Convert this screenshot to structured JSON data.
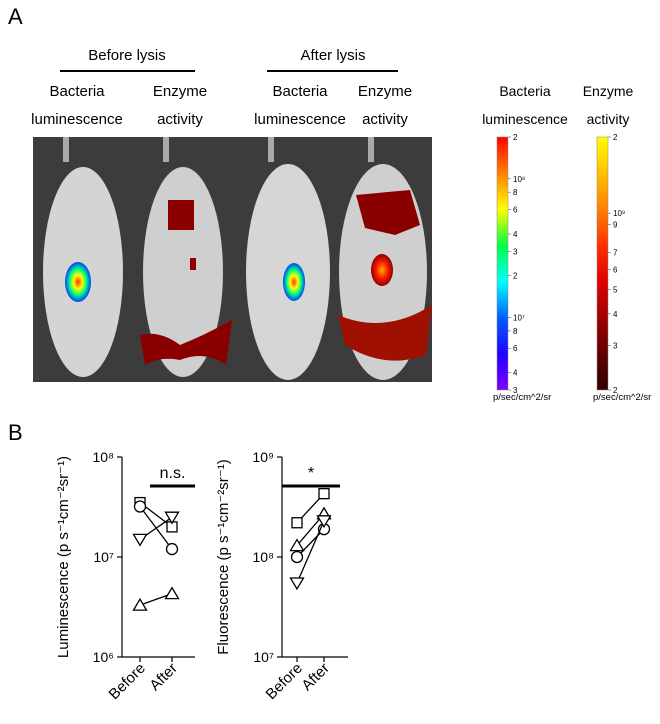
{
  "panel_a": {
    "label": "A",
    "before": "Before lysis",
    "after": "After lysis",
    "columns": [
      [
        "Bacteria",
        "luminescence"
      ],
      [
        "Enzyme",
        "activity"
      ],
      [
        "Bacteria",
        "luminescence"
      ],
      [
        "Enzyme",
        "activity"
      ]
    ]
  },
  "colorbars": [
    {
      "title": [
        "Bacteria",
        "luminescence"
      ],
      "lim": [
        3000000,
        200000000
      ],
      "unit": "p/sec/cm^2/sr",
      "colors": [
        "#ff0000",
        "#ff8000",
        "#ffff00",
        "#00ff40",
        "#00ffff",
        "#0060ff",
        "#2000ff",
        "#8000ff"
      ],
      "ticks": [
        {
          "value": 200000000,
          "label": "2"
        },
        {
          "value": 100000000,
          "label": "10⁸"
        },
        {
          "value": 80000000,
          "label": "8"
        },
        {
          "value": 60000000,
          "label": "6"
        },
        {
          "value": 40000000,
          "label": "4"
        },
        {
          "value": 30000000,
          "label": "3"
        },
        {
          "value": 20000000,
          "label": "2"
        },
        {
          "value": 10000000,
          "label": "10⁷"
        },
        {
          "value": 8000000,
          "label": "8"
        },
        {
          "value": 6000000,
          "label": "6"
        },
        {
          "value": 4000000,
          "label": "4"
        },
        {
          "value": 3000000,
          "label": "3"
        }
      ]
    },
    {
      "title": [
        "Enzyme",
        "activity"
      ],
      "lim": [
        200000000,
        2000000000
      ],
      "unit": "p/sec/cm^2/sr",
      "colors": [
        "#ffff00",
        "#ffc000",
        "#ff8000",
        "#ff3000",
        "#e00000",
        "#a00000",
        "#600000",
        "#300000"
      ],
      "ticks": [
        {
          "value": 2000000000,
          "label": "2"
        },
        {
          "value": 1000000000,
          "label": "10⁹"
        },
        {
          "value": 900000000,
          "label": "9"
        },
        {
          "value": 700000000,
          "label": "7"
        },
        {
          "value": 600000000,
          "label": "6"
        },
        {
          "value": 500000000,
          "label": "5"
        },
        {
          "value": 400000000,
          "label": "4"
        },
        {
          "value": 300000000,
          "label": "3"
        },
        {
          "value": 200000000,
          "label": "2"
        }
      ]
    }
  ],
  "panel_b_label": "B",
  "chart_data": [
    {
      "type": "line",
      "ylabel": "Luminescence (p s⁻¹cm⁻²sr⁻¹)",
      "log": true,
      "significance": "n.s.",
      "categories": [
        "Before",
        "After"
      ],
      "ylim": [
        1000000,
        100000000
      ],
      "yticks": [
        {
          "value": 1000000,
          "label": "10⁶"
        },
        {
          "value": 10000000,
          "label": "10⁷"
        },
        {
          "value": 100000000,
          "label": "10⁸"
        }
      ],
      "series": [
        {
          "marker": "square",
          "values": [
            35000000,
            20000000
          ]
        },
        {
          "marker": "circle",
          "values": [
            32000000,
            12000000
          ]
        },
        {
          "marker": "triangle-down",
          "values": [
            15000000,
            25000000
          ]
        },
        {
          "marker": "triangle-up",
          "values": [
            3300000,
            4300000
          ]
        }
      ]
    },
    {
      "type": "line",
      "ylabel": "Fluorescence (p s⁻¹cm⁻²sr⁻¹)",
      "log": true,
      "significance": "*",
      "categories": [
        "Before",
        "After"
      ],
      "ylim": [
        10000000,
        1000000000
      ],
      "yticks": [
        {
          "value": 10000000,
          "label": "10⁷"
        },
        {
          "value": 100000000,
          "label": "10⁸"
        },
        {
          "value": 1000000000,
          "label": "10⁹"
        }
      ],
      "series": [
        {
          "marker": "square",
          "values": [
            220000000,
            430000000
          ]
        },
        {
          "marker": "triangle-up",
          "values": [
            130000000,
            270000000
          ]
        },
        {
          "marker": "circle",
          "values": [
            100000000,
            190000000
          ]
        },
        {
          "marker": "triangle-down",
          "values": [
            55000000,
            230000000
          ]
        }
      ]
    }
  ]
}
